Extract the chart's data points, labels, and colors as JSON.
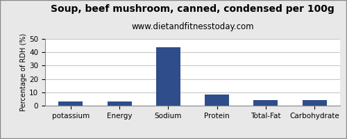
{
  "title": "Soup, beef mushroom, canned, condensed per 100g",
  "subtitle": "www.dietandfitnesstoday.com",
  "categories": [
    "potassium",
    "Energy",
    "Sodium",
    "Protein",
    "Total-Fat",
    "Carbohydrate"
  ],
  "values": [
    3.2,
    3.2,
    44.0,
    8.5,
    4.2,
    4.2
  ],
  "bar_color": "#2e4d8a",
  "ylabel": "Percentage of RDH (%)",
  "ylim": [
    0,
    50
  ],
  "yticks": [
    0,
    10,
    20,
    30,
    40,
    50
  ],
  "background_color": "#e8e8e8",
  "plot_bg_color": "#ffffff",
  "grid_color": "#c8c8c8",
  "border_color": "#888888",
  "title_fontsize": 10,
  "subtitle_fontsize": 8.5,
  "ylabel_fontsize": 7,
  "tick_fontsize": 7.5
}
